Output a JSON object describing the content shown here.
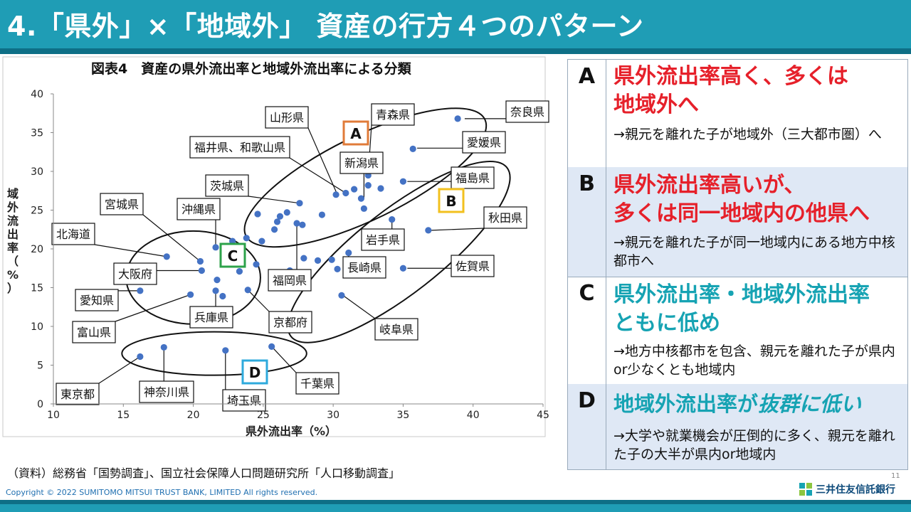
{
  "slide": {
    "title": "4.「県外」×「地域外」 資産の行方４つのパターン",
    "source": "（資料）総務省「国勢調査」、国立社会保障人口問題研究所「人口移動調査」",
    "copyright": "Copyright © 2022 SUMITOMO MITSUI TRUST BANK, LIMITED All rights reserved.",
    "page_number": "11",
    "logo_text": "三井住友信託銀行",
    "colors": {
      "title_bar": "#1f9db5",
      "title_bar_dark": "#0e6f86",
      "point": "#4472c4",
      "red": "#e6202a",
      "teal": "#16a3b3",
      "A": "#e07b39",
      "B": "#f2c01e",
      "C": "#2ca24a",
      "D": "#2eaadc"
    }
  },
  "chart_data": {
    "type": "scatter",
    "title": "図表4　資産の県外流出率と地域外流出率による分類",
    "xlabel": "県外流出率（%）",
    "ylabel": "域外流出率（%）",
    "xlim": [
      10,
      45
    ],
    "ylim": [
      0,
      40
    ],
    "xticks": [
      "10",
      "15",
      "20",
      "25",
      "30",
      "35",
      "40",
      "45"
    ],
    "yticks": [
      "0",
      "5",
      "10",
      "15",
      "20",
      "25",
      "30",
      "35",
      "40"
    ],
    "grid": false,
    "points": [
      {
        "x": 38.9,
        "y": 36.8
      },
      {
        "x": 35.7,
        "y": 32.9
      },
      {
        "x": 35.0,
        "y": 28.7
      },
      {
        "x": 32.5,
        "y": 29.5
      },
      {
        "x": 32.5,
        "y": 28.2
      },
      {
        "x": 33.4,
        "y": 27.8
      },
      {
        "x": 31.5,
        "y": 27.7
      },
      {
        "x": 30.9,
        "y": 27.2
      },
      {
        "x": 30.2,
        "y": 27.0
      },
      {
        "x": 32.0,
        "y": 26.5
      },
      {
        "x": 32.2,
        "y": 25.2
      },
      {
        "x": 29.2,
        "y": 24.4
      },
      {
        "x": 34.2,
        "y": 23.8
      },
      {
        "x": 36.8,
        "y": 22.4
      },
      {
        "x": 27.6,
        "y": 25.9
      },
      {
        "x": 26.7,
        "y": 24.7
      },
      {
        "x": 26.2,
        "y": 24.2
      },
      {
        "x": 26.0,
        "y": 23.5
      },
      {
        "x": 24.6,
        "y": 24.5
      },
      {
        "x": 27.4,
        "y": 23.3
      },
      {
        "x": 27.8,
        "y": 23.1
      },
      {
        "x": 25.8,
        "y": 22.5
      },
      {
        "x": 23.8,
        "y": 21.4
      },
      {
        "x": 22.8,
        "y": 21.0
      },
      {
        "x": 24.9,
        "y": 21.0
      },
      {
        "x": 21.6,
        "y": 20.2
      },
      {
        "x": 31.1,
        "y": 19.5
      },
      {
        "x": 29.9,
        "y": 18.6
      },
      {
        "x": 27.9,
        "y": 18.8
      },
      {
        "x": 28.9,
        "y": 18.5
      },
      {
        "x": 30.3,
        "y": 17.4
      },
      {
        "x": 35.0,
        "y": 17.5
      },
      {
        "x": 26.9,
        "y": 17.2
      },
      {
        "x": 23.3,
        "y": 17.1
      },
      {
        "x": 24.5,
        "y": 18.0
      },
      {
        "x": 20.5,
        "y": 18.4
      },
      {
        "x": 20.6,
        "y": 17.2
      },
      {
        "x": 21.7,
        "y": 16.0
      },
      {
        "x": 21.6,
        "y": 14.6
      },
      {
        "x": 22.1,
        "y": 13.9
      },
      {
        "x": 23.9,
        "y": 14.7
      },
      {
        "x": 19.8,
        "y": 14.1
      },
      {
        "x": 18.1,
        "y": 19.0
      },
      {
        "x": 16.2,
        "y": 14.6
      },
      {
        "x": 30.6,
        "y": 14.0
      },
      {
        "x": 16.2,
        "y": 6.1
      },
      {
        "x": 17.9,
        "y": 7.3
      },
      {
        "x": 22.3,
        "y": 6.9
      },
      {
        "x": 25.6,
        "y": 7.4
      }
    ],
    "annotations": [
      {
        "text": "奈良県"
      },
      {
        "text": "愛媛県"
      },
      {
        "text": "福島県"
      },
      {
        "text": "秋田県"
      },
      {
        "text": "佐賀県"
      },
      {
        "text": "岐阜県"
      },
      {
        "text": "山形県"
      },
      {
        "text": "青森県"
      },
      {
        "text": "福井県、和歌山県"
      },
      {
        "text": "新潟県"
      },
      {
        "text": "茨城県"
      },
      {
        "text": "岩手県"
      },
      {
        "text": "長崎県"
      },
      {
        "text": "福岡県"
      },
      {
        "text": "宮城県"
      },
      {
        "text": "沖縄県"
      },
      {
        "text": "北海道"
      },
      {
        "text": "大阪府"
      },
      {
        "text": "愛知県"
      },
      {
        "text": "富山県"
      },
      {
        "text": "兵庫県"
      },
      {
        "text": "京都府"
      },
      {
        "text": "東京都"
      },
      {
        "text": "神奈川県"
      },
      {
        "text": "埼玉県"
      },
      {
        "text": "千葉県"
      }
    ],
    "groups": [
      {
        "label": "A"
      },
      {
        "label": "B"
      },
      {
        "label": "C"
      },
      {
        "label": "D"
      }
    ]
  },
  "panel": [
    {
      "letter": "A",
      "heading1": "県外流出率高く、多くは",
      "heading2": "地域外へ",
      "desc": "→親元を離れた子が地域外（三大都市圏）へ"
    },
    {
      "letter": "B",
      "heading1": "県外流出率高いが、",
      "heading2": "多くは同一地域内の他県へ",
      "desc": "→親元を離れた子が同一地域内にある地方中核都市へ"
    },
    {
      "letter": "C",
      "heading1": "県外流出率・地域外流出率",
      "heading2": "ともに低め",
      "desc": "→地方中核都市を包含、親元を離れた子が県内or少なくとも地域内"
    },
    {
      "letter": "D",
      "heading1_plain": "地域外流出率が",
      "heading1_emph": "抜群に低い",
      "desc": "→大学や就業機会が圧倒的に多く、親元を離れた子の大半が県内or地域内"
    }
  ]
}
